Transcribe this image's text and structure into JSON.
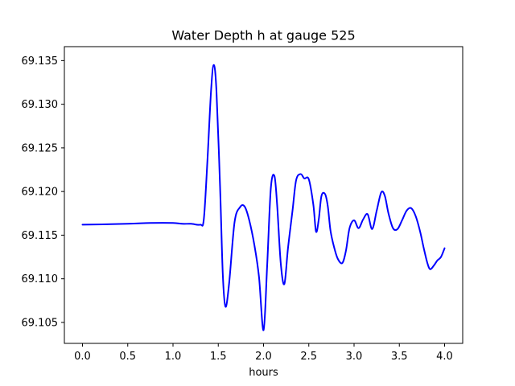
{
  "chart_data": {
    "type": "line",
    "title": "Water Depth h at gauge 525",
    "xlabel": "hours",
    "ylabel": "",
    "xlim": [
      -0.2,
      4.2
    ],
    "ylim": [
      69.1026,
      69.1366
    ],
    "xticks": [
      {
        "value": 0.0,
        "label": "0.0"
      },
      {
        "value": 0.5,
        "label": "0.5"
      },
      {
        "value": 1.0,
        "label": "1.0"
      },
      {
        "value": 1.5,
        "label": "1.5"
      },
      {
        "value": 2.0,
        "label": "2.0"
      },
      {
        "value": 2.5,
        "label": "2.5"
      },
      {
        "value": 3.0,
        "label": "3.0"
      },
      {
        "value": 3.5,
        "label": "3.5"
      },
      {
        "value": 4.0,
        "label": "4.0"
      }
    ],
    "yticks": [
      {
        "value": 69.105,
        "label": "69.105"
      },
      {
        "value": 69.11,
        "label": "69.110"
      },
      {
        "value": 69.115,
        "label": "69.115"
      },
      {
        "value": 69.12,
        "label": "69.120"
      },
      {
        "value": 69.125,
        "label": "69.125"
      },
      {
        "value": 69.13,
        "label": "69.130"
      },
      {
        "value": 69.135,
        "label": "69.135"
      }
    ],
    "grid": false,
    "line_color": "#0000ff",
    "series": [
      {
        "x": [
          0.0,
          0.5,
          0.75,
          1.0,
          1.1,
          1.2,
          1.3,
          1.34,
          1.38,
          1.42,
          1.45,
          1.48,
          1.52,
          1.55,
          1.58,
          1.62,
          1.68,
          1.74,
          1.79,
          1.84,
          1.9,
          1.95,
          2.0,
          2.04,
          2.08,
          2.12,
          2.15,
          2.19,
          2.23,
          2.27,
          2.32,
          2.36,
          2.41,
          2.45,
          2.5,
          2.55,
          2.58,
          2.61,
          2.64,
          2.68,
          2.71,
          2.74,
          2.78,
          2.82,
          2.87,
          2.91,
          2.95,
          3.0,
          3.05,
          3.1,
          3.15,
          3.2,
          3.25,
          3.3,
          3.34,
          3.38,
          3.43,
          3.48,
          3.53,
          3.58,
          3.63,
          3.68,
          3.73,
          3.77,
          3.81,
          3.84,
          3.88,
          3.92,
          3.96,
          4.0
        ],
        "y": [
          69.1162,
          69.1163,
          69.1164,
          69.1164,
          69.1163,
          69.1163,
          69.1162,
          69.1168,
          69.1235,
          69.1315,
          69.1345,
          69.1315,
          69.1205,
          69.1105,
          69.1068,
          69.1095,
          69.1165,
          69.1182,
          69.1183,
          69.1168,
          69.1138,
          69.1102,
          69.1041,
          69.1115,
          69.1203,
          69.1218,
          69.1185,
          69.1118,
          69.1094,
          69.1135,
          69.1178,
          69.1213,
          69.122,
          69.1215,
          69.1214,
          69.1185,
          69.1154,
          69.1168,
          69.1195,
          69.1197,
          69.1183,
          69.1155,
          69.1136,
          69.1123,
          69.1118,
          69.1132,
          69.1158,
          69.1167,
          69.1158,
          69.1168,
          69.1174,
          69.1157,
          69.1178,
          69.1199,
          69.1195,
          69.1175,
          69.1158,
          69.1157,
          69.1167,
          69.1178,
          69.1181,
          69.1172,
          69.1154,
          69.1135,
          69.1118,
          69.1111,
          69.1115,
          69.1121,
          69.1125,
          69.1135
        ]
      }
    ]
  }
}
